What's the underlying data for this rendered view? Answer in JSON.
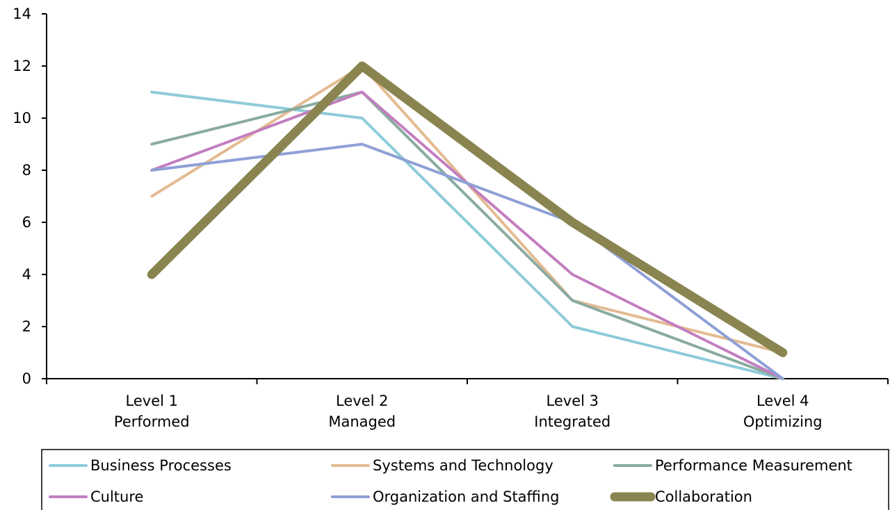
{
  "chart_data": {
    "type": "line",
    "categories": [
      [
        "Level 1",
        "Performed"
      ],
      [
        "Level 2",
        "Managed"
      ],
      [
        "Level 3",
        "Integrated"
      ],
      [
        "Level 4",
        "Optimizing"
      ]
    ],
    "ylim": [
      0,
      14
    ],
    "yticks": [
      "0",
      "2",
      "4",
      "6",
      "8",
      "10",
      "12",
      "14"
    ],
    "grid": false,
    "legend_position": "bottom",
    "series": [
      {
        "name": "Business Processes",
        "color": "#8ecbd9",
        "values": [
          11,
          10,
          2,
          0
        ],
        "emphasis": false
      },
      {
        "name": "Systems and Technology",
        "color": "#e3bb92",
        "values": [
          7,
          12,
          3,
          1
        ],
        "emphasis": false
      },
      {
        "name": "Performance Measurement",
        "color": "#8aab9f",
        "values": [
          9,
          11,
          3,
          0
        ],
        "emphasis": false
      },
      {
        "name": "Culture",
        "color": "#c27ec0",
        "values": [
          8,
          11,
          4,
          0
        ],
        "emphasis": false
      },
      {
        "name": "Organization and Staffing",
        "color": "#8ea0d6",
        "values": [
          8,
          9,
          6,
          0
        ],
        "emphasis": false
      },
      {
        "name": "Collaboration",
        "color": "#8a8450",
        "values": [
          4,
          12,
          6,
          1
        ],
        "emphasis": true
      }
    ]
  }
}
